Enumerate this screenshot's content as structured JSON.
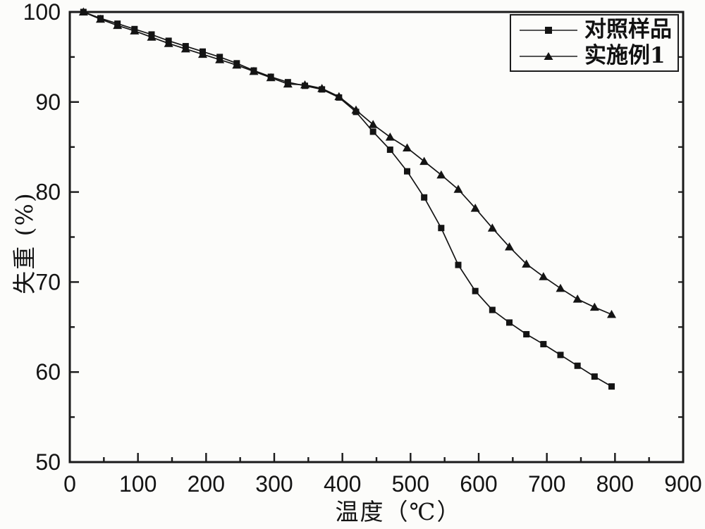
{
  "figure": {
    "xlabel": "温度（℃）",
    "ylabel": "失重 (%)",
    "axis_color": "#1a1a1a",
    "series_color": "#141414",
    "background": "#fcfcfa",
    "legend": {
      "position": "top-right",
      "items": [
        {
          "label": "对照样品",
          "marker": "square"
        },
        {
          "label": "实施例1",
          "marker": "triangle"
        }
      ]
    }
  },
  "chart_data": {
    "type": "line",
    "title": "",
    "xlabel": "温度（℃）",
    "ylabel": "失重 (%)",
    "xlim": [
      0,
      900
    ],
    "ylim": [
      50,
      100
    ],
    "x_ticks": [
      0,
      100,
      200,
      300,
      400,
      500,
      600,
      700,
      800,
      900
    ],
    "y_ticks": [
      50,
      60,
      70,
      80,
      90,
      100
    ],
    "x_minor_step": 50,
    "y_minor_step": 5,
    "grid": false,
    "legend_position": "top-right",
    "x": [
      20,
      45,
      70,
      95,
      120,
      145,
      170,
      195,
      220,
      245,
      270,
      295,
      320,
      345,
      370,
      395,
      420,
      445,
      470,
      495,
      520,
      545,
      570,
      595,
      620,
      645,
      670,
      695,
      720,
      745,
      770,
      795
    ],
    "series": [
      {
        "name": "对照样品",
        "marker": "square",
        "color": "#141414",
        "values": [
          100.0,
          99.3,
          98.7,
          98.1,
          97.5,
          96.8,
          96.2,
          95.6,
          95.0,
          94.3,
          93.5,
          92.8,
          92.2,
          91.8,
          91.4,
          90.5,
          88.9,
          86.7,
          84.7,
          82.3,
          79.4,
          76.0,
          71.9,
          69.0,
          66.9,
          65.5,
          64.2,
          63.1,
          61.9,
          60.7,
          59.5,
          58.4
        ]
      },
      {
        "name": "实施例1",
        "marker": "triangle",
        "color": "#141414",
        "values": [
          100.0,
          99.2,
          98.5,
          97.9,
          97.2,
          96.5,
          95.9,
          95.3,
          94.7,
          94.1,
          93.4,
          92.7,
          92.0,
          91.9,
          91.5,
          90.6,
          89.1,
          87.5,
          86.1,
          84.9,
          83.4,
          81.9,
          80.3,
          78.2,
          76.0,
          73.9,
          72.0,
          70.6,
          69.3,
          68.1,
          67.2,
          66.4
        ]
      }
    ]
  }
}
